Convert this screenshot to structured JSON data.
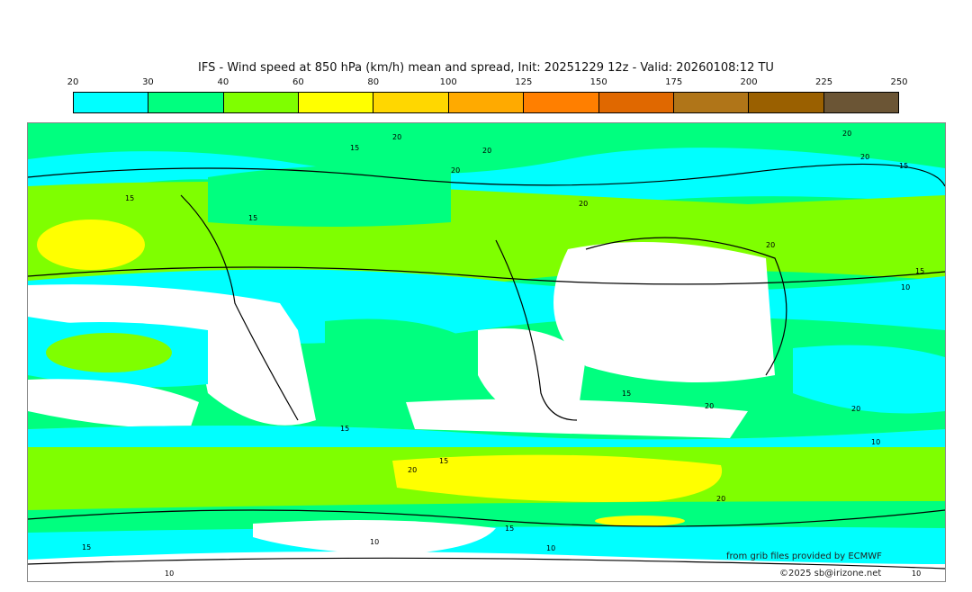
{
  "title": "IFS - Wind speed at 850 hPa (km/h) mean and spread, Init: 20251229 12z - Valid: 20260108:12 TU",
  "legend": {
    "ticks": [
      "20",
      "30",
      "40",
      "60",
      "80",
      "100",
      "125",
      "150",
      "175",
      "200",
      "225",
      "250"
    ],
    "colors": [
      "#00ffff",
      "#00ff7f",
      "#7fff00",
      "#ffff00",
      "#ffd700",
      "#ffaa00",
      "#ff7f00",
      "#e06800",
      "#b07518",
      "#9a6000",
      "#6b5535"
    ]
  },
  "contour_labels": [
    "20",
    "15",
    "20",
    "20",
    "20",
    "15",
    "15",
    "20",
    "20",
    "15",
    "20",
    "15",
    "10",
    "15",
    "20",
    "15",
    "20",
    "15",
    "20",
    "20",
    "10",
    "15",
    "10",
    "10",
    "15",
    "10",
    "10"
  ],
  "credits": {
    "source": "from grib files provided by ECMWF",
    "copyright": "©2025 sb@irizone.net"
  }
}
